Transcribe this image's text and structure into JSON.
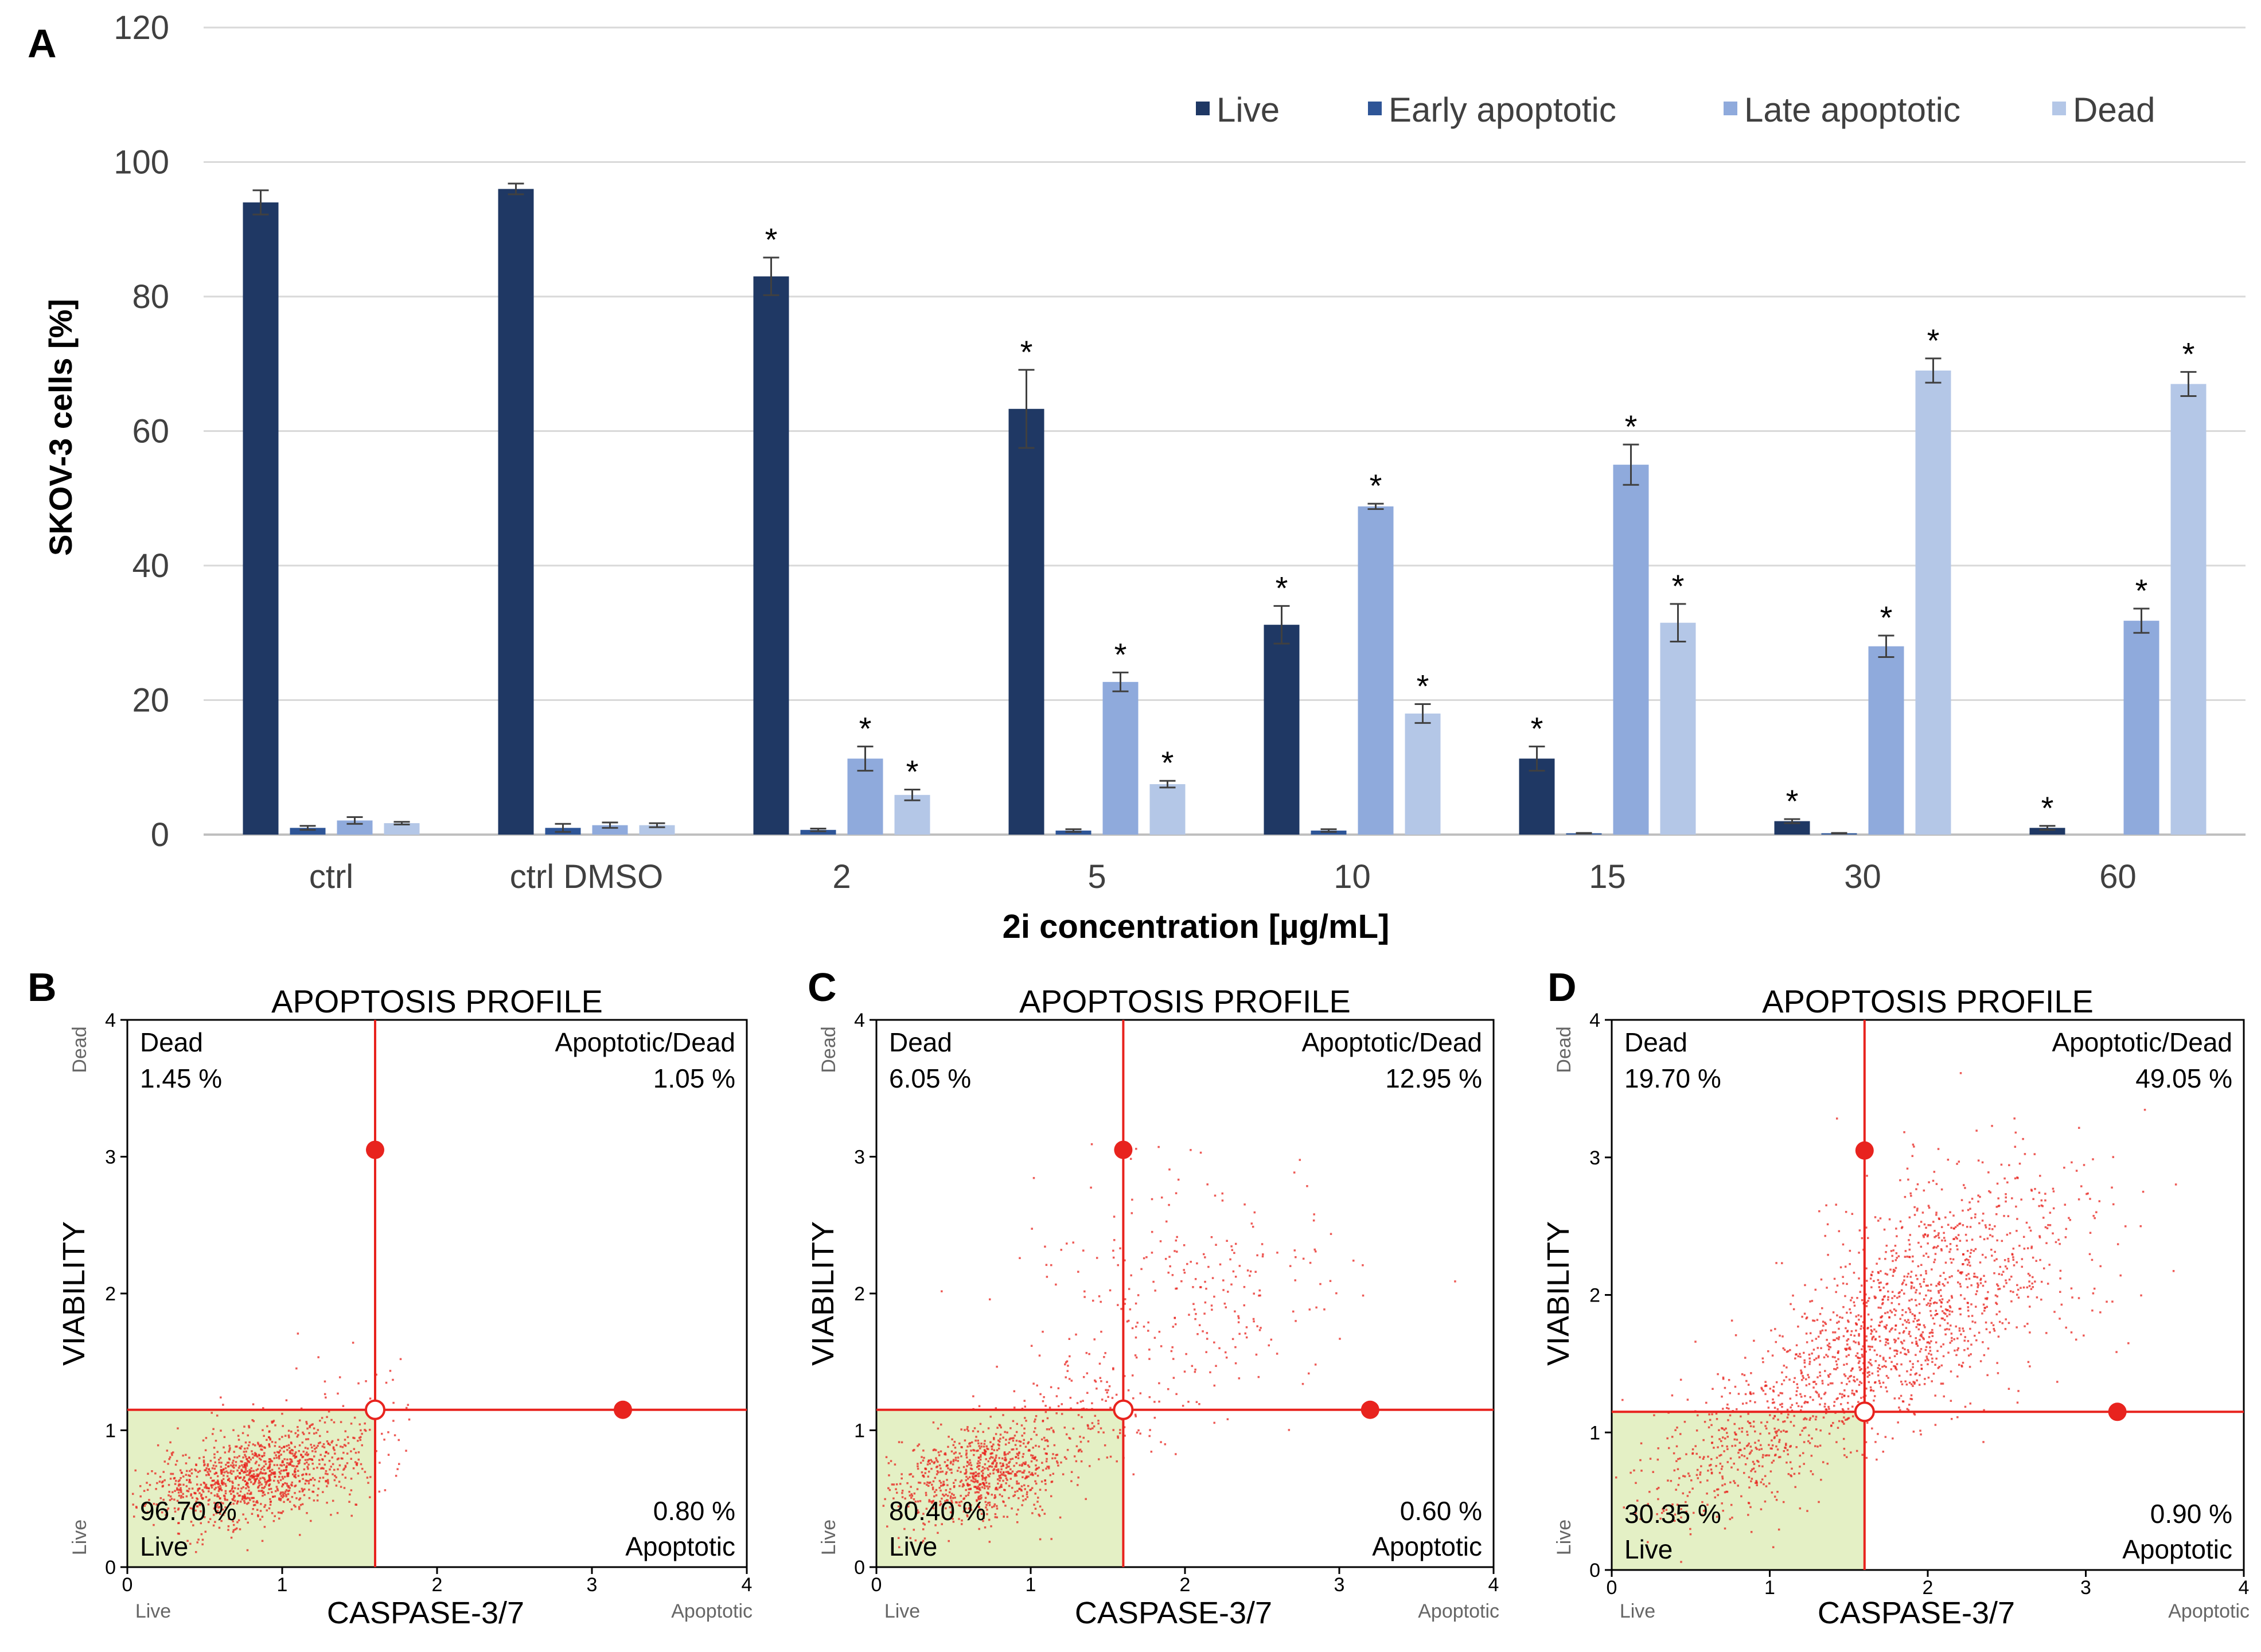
{
  "colors": {
    "live": "#1f3864",
    "early": "#2e5597",
    "late": "#8faadc",
    "dead": "#b4c7e7",
    "flow_red": "#e8231e",
    "live_gate_fill": "#e4f0c5"
  },
  "chart_data": [
    {
      "panel_label": "A",
      "type": "bar",
      "title": "",
      "xlabel": "2i concentration [µg/mL]",
      "ylabel": "SKOV-3 cells [%]",
      "ylim": [
        0,
        120
      ],
      "yticks": [
        "0",
        "20",
        "40",
        "60",
        "80",
        "100",
        "120"
      ],
      "grid": true,
      "legend_position": "top-right",
      "categories": [
        "ctrl",
        "ctrl DMSO",
        "2",
        "5",
        "10",
        "15",
        "30",
        "60"
      ],
      "significance_marker": "*",
      "series": [
        {
          "name": "Live",
          "color_key": "live",
          "values": [
            94,
            96,
            83,
            63.3,
            31.2,
            11.3,
            2.0,
            1.0
          ],
          "errors": [
            1.8,
            0.8,
            2.8,
            5.8,
            2.8,
            1.8,
            0.3,
            0.3
          ],
          "significant": [
            false,
            false,
            true,
            true,
            true,
            true,
            true,
            true
          ]
        },
        {
          "name": "Early apoptotic",
          "color_key": "early",
          "values": [
            1.0,
            1.0,
            0.7,
            0.6,
            0.6,
            0.2,
            0.2,
            0
          ],
          "errors": [
            0.3,
            0.6,
            0.2,
            0.2,
            0.2,
            0.05,
            0.05,
            0
          ],
          "significant": [
            false,
            false,
            false,
            false,
            false,
            false,
            false,
            false
          ]
        },
        {
          "name": "Late apoptotic",
          "color_key": "late",
          "values": [
            2.1,
            1.4,
            11.3,
            22.7,
            48.8,
            55.0,
            28.0,
            31.8
          ],
          "errors": [
            0.5,
            0.4,
            1.8,
            1.4,
            0.4,
            3.0,
            1.6,
            1.8
          ],
          "significant": [
            false,
            false,
            true,
            true,
            true,
            true,
            true,
            true
          ]
        },
        {
          "name": "Dead",
          "color_key": "dead",
          "values": [
            1.7,
            1.4,
            5.9,
            7.5,
            18.0,
            31.5,
            69.0,
            67.0
          ],
          "errors": [
            0.2,
            0.3,
            0.8,
            0.5,
            1.4,
            2.8,
            1.8,
            1.8
          ],
          "significant": [
            false,
            false,
            true,
            true,
            true,
            true,
            true,
            true
          ]
        }
      ]
    },
    {
      "panel_label": "B",
      "type": "scatter",
      "title": "APOPTOSIS PROFILE",
      "xlabel": "CASPASE-3/7",
      "ylabel": "VIABILITY",
      "xlim": [
        0,
        4
      ],
      "ylim": [
        0,
        4
      ],
      "ticks": [
        "0",
        "1",
        "2",
        "3",
        "4"
      ],
      "axis_end_labels": {
        "x_low": "Live",
        "x_high": "Apoptotic",
        "y_low": "Live",
        "y_high": "Dead"
      },
      "gate": {
        "x": 1.6,
        "y": 1.15
      },
      "handles": [
        {
          "x": 1.6,
          "y": 3.05
        },
        {
          "x": 3.2,
          "y": 1.15
        }
      ],
      "quadrants": {
        "top_left": {
          "name": "Dead",
          "value": "1.45 %"
        },
        "top_right": {
          "name": "Apoptotic/Dead",
          "value": "1.05 %"
        },
        "bottom_left": {
          "name": "Live",
          "value": "96.70 %"
        },
        "bottom_right": {
          "name": "Apoptotic",
          "value": "0.80 %"
        }
      },
      "clusters": [
        {
          "cx": 0.8,
          "cy": 0.68,
          "sx": 0.35,
          "sy": 0.16,
          "n": 1100,
          "rot": 0.25
        },
        {
          "cx": 1.25,
          "cy": 1.0,
          "sx": 0.35,
          "sy": 0.3,
          "n": 70,
          "rot": 0.5
        }
      ]
    },
    {
      "panel_label": "C",
      "type": "scatter",
      "title": "APOPTOSIS PROFILE",
      "xlabel": "CASPASE-3/7",
      "ylabel": "VIABILITY",
      "xlim": [
        0,
        4
      ],
      "ylim": [
        0,
        4
      ],
      "ticks": [
        "0",
        "1",
        "2",
        "3",
        "4"
      ],
      "axis_end_labels": {
        "x_low": "Live",
        "x_high": "Apoptotic",
        "y_low": "Live",
        "y_high": "Dead"
      },
      "gate": {
        "x": 1.6,
        "y": 1.15
      },
      "handles": [
        {
          "x": 1.6,
          "y": 3.05
        },
        {
          "x": 3.2,
          "y": 1.15
        }
      ],
      "quadrants": {
        "top_left": {
          "name": "Dead",
          "value": "6.05 %"
        },
        "top_right": {
          "name": "Apoptotic/Dead",
          "value": "12.95 %"
        },
        "bottom_left": {
          "name": "Live",
          "value": "80.40 %"
        },
        "bottom_right": {
          "name": "Apoptotic",
          "value": "0.60 %"
        }
      },
      "clusters": [
        {
          "cx": 0.65,
          "cy": 0.68,
          "sx": 0.3,
          "sy": 0.17,
          "n": 800,
          "rot": 0.3
        },
        {
          "cx": 1.3,
          "cy": 1.1,
          "sx": 0.3,
          "sy": 0.22,
          "n": 150,
          "rot": 0.6
        },
        {
          "cx": 2.0,
          "cy": 2.0,
          "sx": 0.5,
          "sy": 0.45,
          "n": 260,
          "rot": 0.7
        }
      ]
    },
    {
      "panel_label": "D",
      "type": "scatter",
      "title": "APOPTOSIS PROFILE",
      "xlabel": "CASPASE-3/7",
      "ylabel": "VIABILITY",
      "xlim": [
        0,
        4
      ],
      "ylim": [
        0,
        4
      ],
      "ticks": [
        "0",
        "1",
        "2",
        "3",
        "4"
      ],
      "axis_end_labels": {
        "x_low": "Live",
        "x_high": "Apoptotic",
        "y_low": "Live",
        "y_high": "Dead"
      },
      "gate": {
        "x": 1.6,
        "y": 1.15
      },
      "handles": [
        {
          "x": 1.6,
          "y": 3.05
        },
        {
          "x": 3.2,
          "y": 1.15
        }
      ],
      "quadrants": {
        "top_left": {
          "name": "Dead",
          "value": "19.70 %"
        },
        "top_right": {
          "name": "Apoptotic/Dead",
          "value": "49.05 %"
        },
        "bottom_left": {
          "name": "Live",
          "value": "30.35 %"
        },
        "bottom_right": {
          "name": "Apoptotic",
          "value": "0.90 %"
        }
      },
      "clusters": [
        {
          "cx": 0.8,
          "cy": 0.85,
          "sx": 0.4,
          "sy": 0.22,
          "n": 420,
          "rot": 0.5
        },
        {
          "cx": 1.5,
          "cy": 1.5,
          "sx": 0.35,
          "sy": 0.25,
          "n": 450,
          "rot": 0.6
        },
        {
          "cx": 2.1,
          "cy": 2.1,
          "sx": 0.55,
          "sy": 0.35,
          "n": 900,
          "rot": 0.75
        }
      ]
    }
  ]
}
